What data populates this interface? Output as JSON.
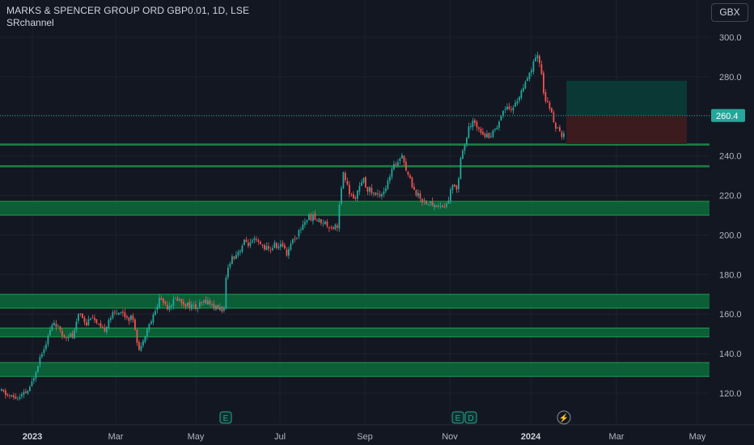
{
  "header": {
    "title": "MARKS & SPENCER GROUP ORD GBP0.01, 1D, LSE",
    "indicator": "SRchannel"
  },
  "currency_button": "GBX",
  "colors": {
    "background": "#131722",
    "up": "#26a69a",
    "down": "#ef5350",
    "zone_fill": "#0b6b3a",
    "zone_line": "#1e9e50",
    "profit_fill": "#0a3a37",
    "loss_fill": "#3e1b1f",
    "price_label": "#26a69a"
  },
  "chart_data": {
    "type": "candlestick",
    "ylim": [
      108,
      310
    ],
    "yticks": [
      120,
      140,
      160,
      180,
      200,
      220,
      240,
      260,
      280,
      300
    ],
    "ytick_labels": [
      "120.0",
      "140.0",
      "160.0",
      "180.0",
      "200.0",
      "220.0",
      "240.0",
      "260.0",
      "280.0",
      "300.0"
    ],
    "x_labels": [
      {
        "label": "2023",
        "bold": true
      },
      {
        "label": "Mar",
        "bold": false
      },
      {
        "label": "May",
        "bold": false
      },
      {
        "label": "Jul",
        "bold": false
      },
      {
        "label": "Sep",
        "bold": false
      },
      {
        "label": "Nov",
        "bold": false
      },
      {
        "label": "2024",
        "bold": true
      },
      {
        "label": "Mar",
        "bold": false
      },
      {
        "label": "May",
        "bold": false
      }
    ],
    "current_price": 260.4,
    "current_price_label": "260.4",
    "sr_zones": [
      {
        "low": 128.5,
        "high": 135.5
      },
      {
        "low": 148.5,
        "high": 153
      },
      {
        "low": 163,
        "high": 170
      },
      {
        "low": 210,
        "high": 217
      },
      {
        "low": 234.5,
        "high": 235
      },
      {
        "low": 245.5,
        "high": 246
      }
    ],
    "position": {
      "entry": 260.4,
      "target": 278,
      "stop": 246
    },
    "event_markers": [
      {
        "label": "E"
      },
      {
        "label": "E"
      },
      {
        "label": "D"
      },
      {
        "label": "⚡"
      }
    ],
    "price_path": [
      [
        0,
        121
      ],
      [
        8,
        119
      ],
      [
        15,
        118
      ],
      [
        22,
        117
      ],
      [
        30,
        120
      ],
      [
        36,
        122
      ],
      [
        42,
        130
      ],
      [
        48,
        138
      ],
      [
        54,
        144
      ],
      [
        58,
        148
      ],
      [
        62,
        153
      ],
      [
        66,
        156
      ],
      [
        70,
        154
      ],
      [
        74,
        150
      ],
      [
        78,
        149
      ],
      [
        84,
        150
      ],
      [
        88,
        148
      ],
      [
        92,
        152
      ],
      [
        97,
        162
      ],
      [
        102,
        158
      ],
      [
        106,
        155
      ],
      [
        112,
        160
      ],
      [
        118,
        155
      ],
      [
        124,
        152
      ],
      [
        128,
        152
      ],
      [
        134,
        158
      ],
      [
        140,
        160
      ],
      [
        146,
        162
      ],
      [
        152,
        160
      ],
      [
        158,
        158
      ],
      [
        164,
        158
      ],
      [
        168,
        148
      ],
      [
        172,
        140
      ],
      [
        176,
        148
      ],
      [
        180,
        152
      ],
      [
        184,
        155
      ],
      [
        190,
        160
      ],
      [
        196,
        168
      ],
      [
        202,
        166
      ],
      [
        206,
        164
      ],
      [
        212,
        166
      ],
      [
        218,
        168
      ],
      [
        224,
        166
      ],
      [
        230,
        165
      ],
      [
        236,
        164
      ],
      [
        242,
        163
      ],
      [
        248,
        165
      ],
      [
        254,
        167
      ],
      [
        260,
        165
      ],
      [
        266,
        163
      ],
      [
        272,
        163
      ],
      [
        276,
        162
      ],
      [
        279,
        180
      ],
      [
        284,
        188
      ],
      [
        290,
        190
      ],
      [
        296,
        193
      ],
      [
        302,
        197
      ],
      [
        308,
        195
      ],
      [
        314,
        197
      ],
      [
        320,
        195
      ],
      [
        326,
        194
      ],
      [
        332,
        192
      ],
      [
        338,
        195
      ],
      [
        344,
        194
      ],
      [
        350,
        195
      ],
      [
        354,
        190
      ],
      [
        358,
        196
      ],
      [
        362,
        198
      ],
      [
        368,
        201
      ],
      [
        374,
        206
      ],
      [
        380,
        209
      ],
      [
        386,
        209
      ],
      [
        392,
        207
      ],
      [
        398,
        207
      ],
      [
        404,
        205
      ],
      [
        410,
        204
      ],
      [
        416,
        205
      ],
      [
        419,
        217
      ],
      [
        424,
        232
      ],
      [
        428,
        225
      ],
      [
        432,
        220
      ],
      [
        436,
        218
      ],
      [
        440,
        221
      ],
      [
        444,
        224
      ],
      [
        448,
        228
      ],
      [
        452,
        224
      ],
      [
        458,
        222
      ],
      [
        464,
        220
      ],
      [
        470,
        221
      ],
      [
        476,
        224
      ],
      [
        480,
        228
      ],
      [
        484,
        233
      ],
      [
        488,
        236
      ],
      [
        492,
        238
      ],
      [
        496,
        242
      ],
      [
        500,
        234
      ],
      [
        504,
        230
      ],
      [
        508,
        226
      ],
      [
        512,
        222
      ],
      [
        516,
        220
      ],
      [
        520,
        218
      ],
      [
        524,
        217
      ],
      [
        530,
        216
      ],
      [
        536,
        215
      ],
      [
        542,
        215
      ],
      [
        548,
        214
      ],
      [
        552,
        216
      ],
      [
        556,
        222
      ],
      [
        560,
        226
      ],
      [
        565,
        223
      ],
      [
        568,
        240
      ],
      [
        574,
        246
      ],
      [
        578,
        253
      ],
      [
        584,
        257
      ],
      [
        590,
        255
      ],
      [
        596,
        252
      ],
      [
        600,
        250
      ],
      [
        606,
        251
      ],
      [
        612,
        254
      ],
      [
        616,
        258
      ],
      [
        620,
        262
      ],
      [
        626,
        266
      ],
      [
        632,
        263
      ],
      [
        638,
        268
      ],
      [
        644,
        273
      ],
      [
        650,
        277
      ],
      [
        656,
        284
      ],
      [
        660,
        288
      ],
      [
        664,
        290
      ],
      [
        668,
        284
      ],
      [
        671,
        272
      ],
      [
        674,
        268
      ],
      [
        678,
        264
      ],
      [
        682,
        260
      ],
      [
        686,
        255
      ],
      [
        690,
        252
      ],
      [
        694,
        249
      ],
      [
        698,
        256
      ],
      [
        700,
        260.4
      ]
    ]
  }
}
